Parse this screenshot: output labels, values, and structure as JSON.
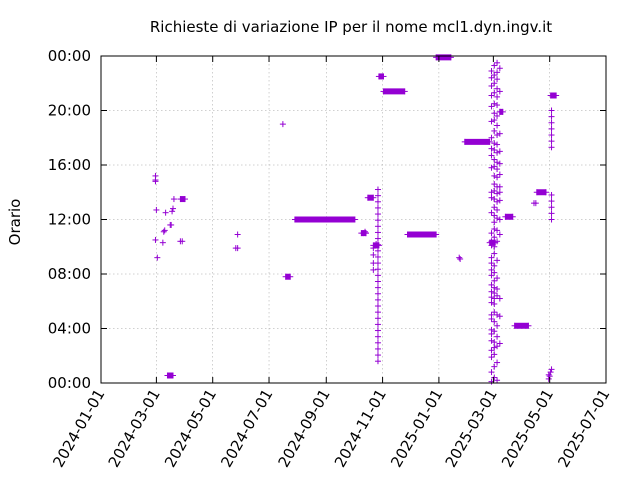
{
  "chart_data": {
    "type": "scatter",
    "title": "Richieste di variazione IP per il nome mcl1.dyn.ingv.it",
    "xlabel": "",
    "ylabel": "Orario",
    "x_axis": "date",
    "xlim": [
      "2024-01-01",
      "2025-07-01"
    ],
    "ylim_hours": [
      0,
      24
    ],
    "x_tick_labels": [
      "2024-01-01",
      "2024-03-01",
      "2024-05-01",
      "2024-07-01",
      "2024-09-01",
      "2024-11-01",
      "2025-01-01",
      "2025-03-01",
      "2025-05-01",
      "2025-07-01"
    ],
    "y_tick_labels": [
      "00:00",
      "04:00",
      "08:00",
      "12:00",
      "16:00",
      "20:00",
      "00:00"
    ],
    "y_tick_hours": [
      0,
      4,
      8,
      12,
      16,
      20,
      24
    ],
    "grid": true,
    "legend": "none",
    "color": "#9400d3",
    "series": [
      {
        "points": [
          [
            "2024-02-29",
            15.2
          ],
          [
            "2024-02-29",
            14.9
          ],
          [
            "2024-02-29",
            14.8
          ],
          [
            "2024-03-01",
            12.7
          ],
          [
            "2024-02-29",
            10.5
          ],
          [
            "2024-03-02",
            9.2
          ],
          [
            "2024-03-08",
            10.3
          ],
          [
            "2024-03-11",
            12.5
          ],
          [
            "2024-03-09",
            11.1
          ],
          [
            "2024-03-10",
            11.2
          ],
          [
            "2024-03-16",
            11.6
          ],
          [
            "2024-03-17",
            11.6
          ],
          [
            "2024-03-18",
            12.6
          ],
          [
            "2024-03-19",
            12.8
          ],
          [
            "2024-03-20",
            13.5
          ],
          [
            "2024-03-27",
            10.4
          ],
          [
            "2024-03-29",
            10.4
          ],
          [
            "2024-05-26",
            9.9
          ],
          [
            "2024-05-28",
            9.9
          ],
          [
            "2024-05-28",
            10.9
          ],
          [
            "2024-07-16",
            19.0
          ],
          [
            "2024-10-11",
            11.0
          ],
          [
            "2024-10-14",
            11.0
          ],
          [
            "2024-10-13",
            11.1
          ],
          [
            "2024-10-22",
            9.9
          ],
          [
            "2024-10-22",
            9.4
          ],
          [
            "2024-10-22",
            8.8
          ],
          [
            "2024-10-22",
            8.3
          ],
          [
            "2024-10-25",
            10.2
          ],
          [
            "2025-01-23",
            9.2
          ],
          [
            "2025-01-24",
            9.1
          ],
          [
            "2025-04-14",
            13.2
          ],
          [
            "2025-04-16",
            13.2
          ],
          [
            "2025-04-30",
            0.3
          ],
          [
            "2025-05-01",
            0.5
          ],
          [
            "2025-05-02",
            0.8
          ],
          [
            "2025-05-03",
            1.0
          ],
          [
            "2025-04-30",
            0.6
          ]
        ],
        "column_days": [
          {
            "date": "2024-10-27",
            "from_hour": 1.6,
            "to_hour": 14.2
          },
          {
            "date": "2025-05-03",
            "from_hour": 17.3,
            "to_hour": 20.0
          },
          {
            "date": "2025-05-03",
            "from_hour": 12.0,
            "to_hour": 13.9
          }
        ],
        "dense_days": [
          {
            "date": "2025-02-27",
            "hours": [
              0.1,
              0.8,
              1.9,
              2.4,
              3.1,
              3.6,
              3.9,
              4.7,
              5.0,
              5.9,
              6.3,
              6.7,
              7.2,
              7.9,
              8.3,
              8.8,
              9.2,
              10.1,
              10.4,
              11.0,
              12.5,
              13.6,
              14.0,
              15.8,
              16.7,
              17.2,
              18.0,
              19.2,
              20.3,
              21.1,
              21.8,
              22.4,
              22.9
            ]
          },
          {
            "date": "2025-03-02",
            "hours": [
              0.4,
              1.2,
              2.1,
              2.6,
              3.0,
              3.8,
              4.5,
              5.2,
              5.8,
              6.2,
              6.6,
              7.0,
              7.5,
              8.1,
              8.6,
              9.5,
              10.0,
              10.7,
              11.3,
              11.8,
              12.3,
              12.9,
              13.5,
              14.1,
              14.6,
              15.2,
              15.9,
              16.4,
              17.1,
              17.6,
              18.5,
              19.3,
              19.8,
              20.5,
              21.3,
              22.0,
              22.6,
              23.3
            ]
          },
          {
            "date": "2025-03-05",
            "hours": [
              0.2,
              1.5,
              2.7,
              3.4,
              4.2,
              5.0,
              6.4,
              6.9,
              7.7,
              9.0,
              10.4,
              11.2,
              12.1,
              12.7,
              13.3,
              13.9,
              14.4,
              15.1,
              15.7,
              16.2,
              16.9,
              17.5,
              18.2,
              18.9,
              19.6,
              20.4,
              21.0,
              21.6,
              22.3,
              22.8,
              23.5
            ]
          },
          {
            "date": "2025-03-08",
            "hours": [
              2.9,
              4.9,
              6.2,
              10.9,
              12.0,
              13.4,
              14.0,
              14.4,
              15.3,
              16.1,
              17.0,
              18.3,
              19.9,
              21.4,
              23.1
            ]
          }
        ],
        "segments": [
          {
            "date_from": "2024-03-13",
            "date_to": "2024-03-19",
            "hour": 0.55
          },
          {
            "date_from": "2024-03-27",
            "date_to": "2024-04-01",
            "hour": 13.5
          },
          {
            "date_from": "2024-07-19",
            "date_to": "2024-07-24",
            "hour": 7.8
          },
          {
            "date_from": "2024-07-29",
            "date_to": "2024-10-02",
            "hour": 12.0
          },
          {
            "date_from": "2024-10-09",
            "date_to": "2024-10-14",
            "hour": 11.0
          },
          {
            "date_from": "2024-10-16",
            "date_to": "2024-10-22",
            "hour": 13.6
          },
          {
            "date_from": "2024-10-22",
            "date_to": "2024-10-28",
            "hour": 10.1
          },
          {
            "date_from": "2024-10-28",
            "date_to": "2024-11-02",
            "hour": 22.5
          },
          {
            "date_from": "2024-11-02",
            "date_to": "2024-11-25",
            "hour": 21.4
          },
          {
            "date_from": "2024-11-28",
            "date_to": "2024-12-29",
            "hour": 10.9
          },
          {
            "date_from": "2024-12-29",
            "date_to": "2025-01-14",
            "hour": 23.9
          },
          {
            "date_from": "2025-01-29",
            "date_to": "2025-02-25",
            "hour": 17.7
          },
          {
            "date_from": "2025-02-25",
            "date_to": "2025-03-03",
            "hour": 10.3
          },
          {
            "date_from": "2025-03-08",
            "date_to": "2025-03-11",
            "hour": 19.9
          },
          {
            "date_from": "2025-03-14",
            "date_to": "2025-03-22",
            "hour": 12.2
          },
          {
            "date_from": "2025-03-24",
            "date_to": "2025-04-08",
            "hour": 4.2
          },
          {
            "date_from": "2025-04-17",
            "date_to": "2025-04-27",
            "hour": 14.0
          },
          {
            "date_from": "2025-05-02",
            "date_to": "2025-05-08",
            "hour": 21.1
          }
        ]
      }
    ]
  }
}
